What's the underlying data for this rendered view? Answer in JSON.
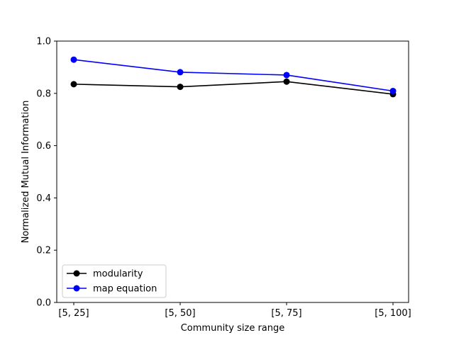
{
  "chart_data": {
    "type": "line",
    "categories": [
      "[5, 25]",
      "[5, 50]",
      "[5, 75]",
      "[5, 100]"
    ],
    "series": [
      {
        "name": "modularity",
        "color": "#000000",
        "marker": "circle",
        "values": [
          0.835,
          0.825,
          0.845,
          0.797
        ]
      },
      {
        "name": "map equation",
        "color": "#0000ff",
        "marker": "circle",
        "values": [
          0.929,
          0.881,
          0.87,
          0.809
        ]
      }
    ],
    "xlabel": "Community size range",
    "ylabel": "Normalized Mutual Information",
    "ylim": [
      0.0,
      1.0
    ],
    "yticks": [
      {
        "value": 0.0,
        "label": "0.0"
      },
      {
        "value": 0.2,
        "label": "0.2"
      },
      {
        "value": 0.4,
        "label": "0.4"
      },
      {
        "value": 0.6,
        "label": "0.6"
      },
      {
        "value": 0.8,
        "label": "0.8"
      },
      {
        "value": 1.0,
        "label": "1.0"
      }
    ],
    "grid": false,
    "legend_position": "lower-left"
  }
}
